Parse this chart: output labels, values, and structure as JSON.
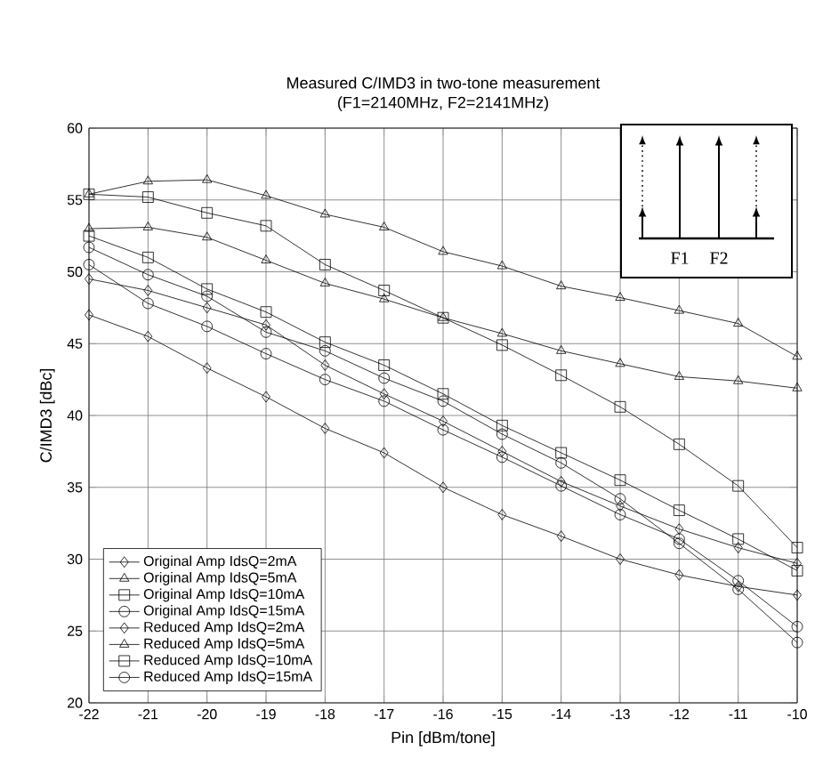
{
  "chart_data": {
    "type": "line",
    "title": "Measured C/IMD3 in two-tone measurement",
    "subtitle": "(F1=2140MHz, F2=2141MHz)",
    "xlabel": "Pin [dBm/tone]",
    "ylabel": "C/IMD3 [dBc]",
    "x": [
      -22,
      -21,
      -20,
      -19,
      -18,
      -17,
      -16,
      -15,
      -14,
      -13,
      -12,
      -11,
      -10
    ],
    "series": [
      {
        "name": "Original Amp IdsQ=2mA",
        "color": "#000000",
        "marker": "diamond",
        "values": [
          47.0,
          45.5,
          43.3,
          41.3,
          39.1,
          37.4,
          35.0,
          33.1,
          31.6,
          30.0,
          28.9,
          28.1,
          27.5
        ]
      },
      {
        "name": "Original Amp IdsQ=5mA",
        "color": "#000000",
        "marker": "triangle",
        "values": [
          53.0,
          53.1,
          52.4,
          50.8,
          49.2,
          48.1,
          46.8,
          45.7,
          44.5,
          43.6,
          42.7,
          42.4,
          41.9
        ]
      },
      {
        "name": "Original Amp IdsQ=10mA",
        "color": "#000000",
        "marker": "square",
        "values": [
          52.5,
          51.0,
          48.8,
          47.2,
          45.1,
          43.5,
          41.5,
          39.3,
          37.4,
          35.5,
          33.4,
          31.4,
          29.2
        ]
      },
      {
        "name": "Original Amp IdsQ=15mA",
        "color": "#000000",
        "marker": "circle",
        "values": [
          50.5,
          47.8,
          46.2,
          44.3,
          42.5,
          41.0,
          39.0,
          37.1,
          35.1,
          33.1,
          31.4,
          28.5,
          25.3
        ]
      },
      {
        "name": "Reduced Amp IdsQ=2mA",
        "color": "#000000",
        "marker": "diamond",
        "values": [
          49.5,
          48.7,
          47.5,
          46.3,
          43.5,
          41.5,
          39.6,
          37.5,
          35.4,
          33.7,
          32.1,
          30.8,
          29.7
        ]
      },
      {
        "name": "Reduced Amp IdsQ=5mA",
        "color": "#000000",
        "marker": "triangle",
        "values": [
          55.4,
          56.3,
          56.4,
          55.3,
          54.0,
          53.1,
          51.4,
          50.4,
          49.0,
          48.2,
          47.3,
          46.4,
          44.1
        ]
      },
      {
        "name": "Reduced Amp IdsQ=10mA",
        "color": "#000000",
        "marker": "square",
        "values": [
          55.4,
          55.2,
          54.1,
          53.2,
          50.5,
          48.7,
          46.8,
          44.9,
          42.8,
          40.6,
          38.0,
          35.1,
          30.8
        ]
      },
      {
        "name": "Reduced Amp IdsQ=15mA",
        "color": "#000000",
        "marker": "circle",
        "values": [
          51.7,
          49.8,
          48.3,
          45.8,
          44.5,
          42.6,
          41.0,
          38.7,
          36.7,
          34.2,
          31.1,
          27.9,
          24.2
        ]
      }
    ],
    "xlim": [
      -22,
      -10
    ],
    "ylim": [
      20,
      60
    ],
    "xticks": [
      -22,
      -21,
      -20,
      -19,
      -18,
      -17,
      -16,
      -15,
      -14,
      -13,
      -12,
      -11,
      -10
    ],
    "yticks": [
      20,
      25,
      30,
      35,
      40,
      45,
      50,
      55,
      60
    ],
    "annotations": [
      "F1",
      "F2"
    ],
    "grid": true,
    "legend": "bottom left"
  }
}
